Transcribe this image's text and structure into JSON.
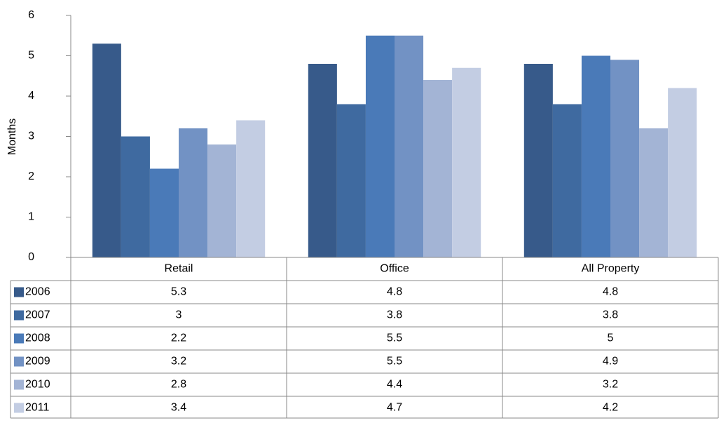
{
  "chart_data": {
    "type": "bar",
    "ylabel": "Months",
    "categories": [
      "Retail",
      "Office",
      "All Property"
    ],
    "series": [
      {
        "name": "2006",
        "color": "#375a8a",
        "values": [
          5.3,
          4.8,
          4.8
        ]
      },
      {
        "name": "2007",
        "color": "#3f6aa0",
        "values": [
          3,
          3.8,
          3.8
        ]
      },
      {
        "name": "2008",
        "color": "#4a7ab8",
        "values": [
          2.2,
          5.5,
          5
        ]
      },
      {
        "name": "2009",
        "color": "#7292c4",
        "values": [
          3.2,
          5.5,
          4.9
        ]
      },
      {
        "name": "2010",
        "color": "#a3b4d5",
        "values": [
          2.8,
          4.4,
          3.2
        ]
      },
      {
        "name": "2011",
        "color": "#c3cde3",
        "values": [
          3.4,
          4.7,
          4.2
        ]
      }
    ],
    "ylim": [
      0,
      6
    ],
    "yticks": [
      0,
      1,
      2,
      3,
      4,
      5,
      6
    ],
    "grid": false,
    "legend": "table"
  }
}
